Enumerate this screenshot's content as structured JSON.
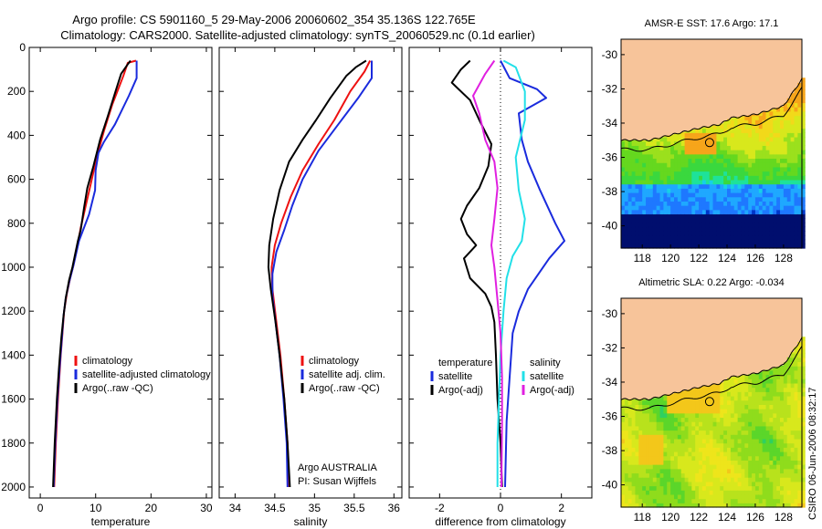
{
  "title": {
    "line1": "Argo profile: CS 5901160_5 29-May-2006 20060602_354 35.136S 122.765E",
    "line2": "Climatology: CARS2000. Satellite-adjusted climatology: synTS_20060529.nc (0.1d earlier)"
  },
  "colors": {
    "climatology": "#ee1111",
    "satellite": "#1a2bdd",
    "argo": "#000000",
    "satellite_s": "#22e0e8",
    "argo_s": "#e020e0",
    "land": "#f7c49a",
    "coast": "#000000"
  },
  "chart_data": [
    {
      "type": "line",
      "xlabel": "temperature",
      "ylabel": "",
      "xlim": [
        -2,
        31
      ],
      "ylim": [
        2050,
        0
      ],
      "xticks": [
        "0",
        "10",
        "20",
        "30"
      ],
      "yticks": [
        "0",
        "200",
        "400",
        "600",
        "800",
        "1000",
        "1200",
        "1400",
        "1600",
        "1800",
        "2000"
      ],
      "legend": [
        "climatology",
        "satellite-adjusted climatology",
        "Argo(..raw -QC)"
      ],
      "series": [
        {
          "name": "climatology",
          "color": "climatology",
          "points": [
            [
              17.3,
              60
            ],
            [
              15.8,
              70
            ],
            [
              15.0,
              130
            ],
            [
              13.0,
              260
            ],
            [
              11.5,
              380
            ],
            [
              10.2,
              500
            ],
            [
              9.3,
              600
            ],
            [
              8.4,
              700
            ],
            [
              7.3,
              820
            ],
            [
              6.6,
              920
            ],
            [
              6.0,
              990
            ],
            [
              5.4,
              1050
            ],
            [
              4.8,
              1120
            ],
            [
              4.3,
              1200
            ],
            [
              4.0,
              1300
            ],
            [
              3.7,
              1400
            ],
            [
              3.2,
              1600
            ],
            [
              2.8,
              1800
            ],
            [
              2.5,
              2000
            ]
          ]
        },
        {
          "name": "satellite-adjusted climatology",
          "color": "satellite",
          "points": [
            [
              17.4,
              60
            ],
            [
              17.4,
              140
            ],
            [
              16.0,
              220
            ],
            [
              13.5,
              350
            ],
            [
              11.5,
              430
            ],
            [
              10.5,
              480
            ],
            [
              10.0,
              560
            ],
            [
              9.9,
              650
            ],
            [
              8.8,
              760
            ],
            [
              7.0,
              880
            ],
            [
              6.0,
              990
            ],
            [
              5.2,
              1070
            ],
            [
              4.6,
              1140
            ],
            [
              4.2,
              1220
            ],
            [
              3.9,
              1320
            ],
            [
              3.6,
              1420
            ],
            [
              3.1,
              1600
            ],
            [
              2.7,
              1800
            ],
            [
              2.4,
              2000
            ]
          ]
        },
        {
          "name": "Argo(..raw -QC)",
          "color": "argo",
          "points": [
            [
              16.3,
              60
            ],
            [
              15.7,
              80
            ],
            [
              14.6,
              120
            ],
            [
              13.6,
              200
            ],
            [
              12.1,
              320
            ],
            [
              10.8,
              420
            ],
            [
              9.6,
              540
            ],
            [
              8.5,
              640
            ],
            [
              7.9,
              730
            ],
            [
              7.3,
              830
            ],
            [
              6.8,
              880
            ],
            [
              6.3,
              940
            ],
            [
              5.8,
              1000
            ],
            [
              5.2,
              1060
            ],
            [
              4.6,
              1140
            ],
            [
              4.2,
              1220
            ],
            [
              3.8,
              1320
            ],
            [
              3.4,
              1450
            ],
            [
              3.0,
              1600
            ],
            [
              2.6,
              1800
            ],
            [
              2.3,
              2000
            ]
          ]
        }
      ]
    },
    {
      "type": "line",
      "xlabel": "salinity",
      "ylabel": "",
      "xlim": [
        33.8,
        36.1
      ],
      "ylim": [
        2050,
        0
      ],
      "xticks": [
        "34",
        "34.5",
        "35",
        "35.5",
        "36"
      ],
      "yticks": [],
      "legend": [
        "climatology",
        "satellite adj. clim.",
        "Argo(..raw -QC)"
      ],
      "annotation": [
        "Argo AUSTRALIA",
        "PI: Susan Wijffels"
      ],
      "series": [
        {
          "name": "climatology",
          "color": "climatology",
          "points": [
            [
              35.7,
              60
            ],
            [
              35.63,
              110
            ],
            [
              35.45,
              200
            ],
            [
              35.25,
              330
            ],
            [
              35.05,
              440
            ],
            [
              34.85,
              560
            ],
            [
              34.7,
              680
            ],
            [
              34.58,
              800
            ],
            [
              34.5,
              900
            ],
            [
              34.46,
              1000
            ],
            [
              34.47,
              1100
            ],
            [
              34.52,
              1250
            ],
            [
              34.57,
              1400
            ],
            [
              34.62,
              1600
            ],
            [
              34.66,
              1800
            ],
            [
              34.68,
              2000
            ]
          ]
        },
        {
          "name": "satellite adj. clim.",
          "color": "satellite",
          "points": [
            [
              35.72,
              60
            ],
            [
              35.72,
              140
            ],
            [
              35.55,
              230
            ],
            [
              35.3,
              350
            ],
            [
              35.05,
              470
            ],
            [
              34.85,
              600
            ],
            [
              34.72,
              720
            ],
            [
              34.62,
              830
            ],
            [
              34.52,
              930
            ],
            [
              34.47,
              1030
            ],
            [
              34.47,
              1130
            ],
            [
              34.51,
              1250
            ],
            [
              34.56,
              1400
            ],
            [
              34.61,
              1600
            ],
            [
              34.65,
              1800
            ],
            [
              34.66,
              2000
            ]
          ]
        },
        {
          "name": "Argo(..raw -QC)",
          "color": "argo",
          "points": [
            [
              35.65,
              60
            ],
            [
              35.52,
              90
            ],
            [
              35.4,
              130
            ],
            [
              35.2,
              230
            ],
            [
              35.02,
              330
            ],
            [
              34.85,
              420
            ],
            [
              34.68,
              520
            ],
            [
              34.56,
              650
            ],
            [
              34.48,
              780
            ],
            [
              34.43,
              900
            ],
            [
              34.42,
              1000
            ],
            [
              34.45,
              1100
            ],
            [
              34.51,
              1250
            ],
            [
              34.56,
              1400
            ],
            [
              34.62,
              1600
            ],
            [
              34.66,
              1800
            ],
            [
              34.69,
              2000
            ]
          ]
        }
      ]
    },
    {
      "type": "line",
      "xlabel": "difference from climatology",
      "ylabel": "",
      "xlim": [
        -3,
        3
      ],
      "ylim": [
        2050,
        0
      ],
      "xticks": [
        "-2",
        "0",
        "2"
      ],
      "yticks": [],
      "zero_line": true,
      "legend_groups": [
        {
          "title": "temperature",
          "items": [
            "satellite",
            "Argo(-adj)"
          ]
        },
        {
          "title": "salinity",
          "items": [
            "satellite",
            "Argo(-adj)"
          ]
        }
      ],
      "series": [
        {
          "name": "temperature satellite",
          "color": "satellite",
          "points": [
            [
              0,
              60
            ],
            [
              0.3,
              140
            ],
            [
              1.2,
              190
            ],
            [
              1.5,
              230
            ],
            [
              0.6,
              300
            ],
            [
              0.7,
              420
            ],
            [
              0.9,
              520
            ],
            [
              1.3,
              650
            ],
            [
              1.8,
              800
            ],
            [
              2.1,
              880
            ],
            [
              1.6,
              960
            ],
            [
              0.9,
              1100
            ],
            [
              0.6,
              1200
            ],
            [
              0.4,
              1300
            ],
            [
              0.3,
              1500
            ],
            [
              0.2,
              1700
            ],
            [
              0.15,
              2000
            ]
          ]
        },
        {
          "name": "temperature Argo(-adj)",
          "color": "argo",
          "points": [
            [
              -1.0,
              60
            ],
            [
              -1.3,
              100
            ],
            [
              -1.6,
              160
            ],
            [
              -1.0,
              240
            ],
            [
              -0.7,
              330
            ],
            [
              -0.3,
              440
            ],
            [
              -0.4,
              540
            ],
            [
              -0.7,
              640
            ],
            [
              -1.1,
              720
            ],
            [
              -1.3,
              780
            ],
            [
              -1.1,
              850
            ],
            [
              -0.8,
              900
            ],
            [
              -1.2,
              960
            ],
            [
              -1.0,
              1050
            ],
            [
              -0.5,
              1120
            ],
            [
              -0.3,
              1180
            ],
            [
              -0.2,
              1250
            ],
            [
              -0.15,
              1400
            ],
            [
              -0.1,
              1600
            ],
            [
              0.0,
              1800
            ],
            [
              0.05,
              2000
            ]
          ]
        },
        {
          "name": "salinity satellite",
          "color": "satellite_s",
          "points": [
            [
              0.1,
              60
            ],
            [
              0.5,
              90
            ],
            [
              0.8,
              200
            ],
            [
              0.8,
              330
            ],
            [
              0.5,
              500
            ],
            [
              0.6,
              650
            ],
            [
              0.8,
              780
            ],
            [
              0.7,
              880
            ],
            [
              0.4,
              950
            ],
            [
              0.2,
              1050
            ],
            [
              0.1,
              1200
            ],
            [
              0.0,
              1400
            ],
            [
              -0.05,
              1600
            ],
            [
              -0.1,
              1800
            ],
            [
              -0.1,
              2000
            ]
          ]
        },
        {
          "name": "salinity Argo(-adj)",
          "color": "argo_s",
          "points": [
            [
              -0.2,
              60
            ],
            [
              -0.5,
              120
            ],
            [
              -0.9,
              220
            ],
            [
              -0.7,
              300
            ],
            [
              -0.5,
              420
            ],
            [
              -0.2,
              520
            ],
            [
              -0.1,
              640
            ],
            [
              -0.2,
              780
            ],
            [
              -0.3,
              900
            ],
            [
              -0.2,
              1000
            ],
            [
              -0.1,
              1150
            ],
            [
              0.0,
              1300
            ],
            [
              0.05,
              1500
            ],
            [
              0.05,
              1700
            ],
            [
              0.03,
              2000
            ]
          ]
        }
      ]
    },
    {
      "type": "heatmap",
      "title": "AMSR-E SST: 17.6 Argo: 17.1",
      "xlim": [
        116.5,
        129.3
      ],
      "ylim": [
        -41.3,
        -29.1
      ],
      "xticks": [
        "118",
        "120",
        "122",
        "124",
        "126",
        "128"
      ],
      "yticks": [
        "-30",
        "-32",
        "-34",
        "-36",
        "-38",
        "-40"
      ],
      "marker": {
        "lon": 122.765,
        "lat": -35.136
      }
    },
    {
      "type": "heatmap",
      "title": "Altimetric SLA: 0.22 Argo: -0.034",
      "xlim": [
        116.5,
        129.3
      ],
      "ylim": [
        -41.3,
        -29.1
      ],
      "xticks": [
        "118",
        "120",
        "122",
        "124",
        "126",
        "128"
      ],
      "yticks": [
        "-30",
        "-32",
        "-34",
        "-36",
        "-38",
        "-40"
      ],
      "marker": {
        "lon": 122.765,
        "lat": -35.136
      }
    }
  ],
  "credit": "CSIRO 06-Jun-2006 08:32:17"
}
